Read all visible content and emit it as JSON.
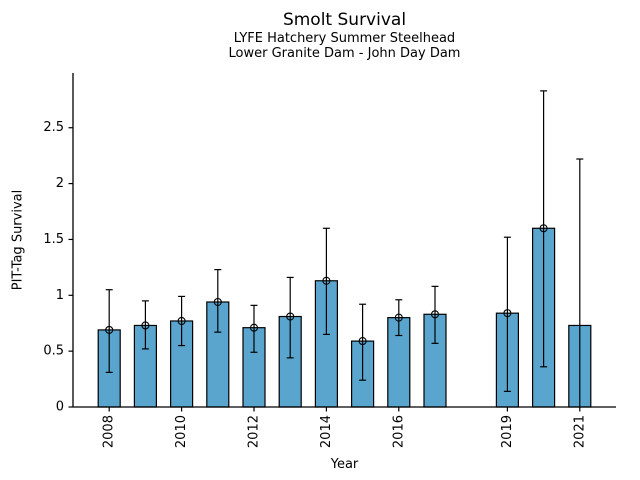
{
  "figure": {
    "title": "Smolt Survival",
    "subtitle1": "LYFE Hatchery Summer Steelhead",
    "subtitle2": "Lower Granite Dam - John Day Dam"
  },
  "chart_data": {
    "type": "bar",
    "title": "Smolt Survival",
    "subtitle": [
      "LYFE Hatchery Summer Steelhead",
      "Lower Granite Dam - John Day Dam"
    ],
    "xlabel": "Year",
    "ylabel": "PIT-Tag Survival",
    "xlim": [
      2007,
      2022
    ],
    "ylim": [
      0,
      2.99
    ],
    "x_ticks": [
      2008,
      2010,
      2012,
      2014,
      2016,
      2019,
      2021
    ],
    "y_ticks": [
      0,
      0.5,
      1,
      1.5,
      2,
      2.5
    ],
    "y_tick_labels": [
      "0",
      "0.5",
      "1",
      "1.5",
      "2",
      "2.5"
    ],
    "grid": false,
    "legend": null,
    "bar_color": "#5AA5CE",
    "bar_edge_color": "#000000",
    "errorbar_color": "#000000",
    "series": [
      {
        "year": 2008,
        "survival": 0.69,
        "ci_low": 0.31,
        "ci_high": 1.05,
        "marker": true,
        "cap_low": true
      },
      {
        "year": 2009,
        "survival": 0.73,
        "ci_low": 0.52,
        "ci_high": 0.95,
        "marker": true,
        "cap_low": true
      },
      {
        "year": 2010,
        "survival": 0.77,
        "ci_low": 0.55,
        "ci_high": 0.99,
        "marker": true,
        "cap_low": true
      },
      {
        "year": 2011,
        "survival": 0.94,
        "ci_low": 0.67,
        "ci_high": 1.23,
        "marker": true,
        "cap_low": true
      },
      {
        "year": 2012,
        "survival": 0.71,
        "ci_low": 0.49,
        "ci_high": 0.91,
        "marker": true,
        "cap_low": true
      },
      {
        "year": 2013,
        "survival": 0.81,
        "ci_low": 0.44,
        "ci_high": 1.16,
        "marker": true,
        "cap_low": true
      },
      {
        "year": 2014,
        "survival": 1.13,
        "ci_low": 0.65,
        "ci_high": 1.6,
        "marker": true,
        "cap_low": true
      },
      {
        "year": 2015,
        "survival": 0.59,
        "ci_low": 0.24,
        "ci_high": 0.92,
        "marker": true,
        "cap_low": true
      },
      {
        "year": 2016,
        "survival": 0.8,
        "ci_low": 0.64,
        "ci_high": 0.96,
        "marker": true,
        "cap_low": true
      },
      {
        "year": 2017,
        "survival": 0.83,
        "ci_low": 0.57,
        "ci_high": 1.08,
        "marker": true,
        "cap_low": true
      },
      {
        "year": 2019,
        "survival": 0.84,
        "ci_low": 0.14,
        "ci_high": 1.52,
        "marker": true,
        "cap_low": true
      },
      {
        "year": 2020,
        "survival": 1.6,
        "ci_low": 0.36,
        "ci_high": 2.83,
        "marker": true,
        "cap_low": true
      },
      {
        "year": 2021,
        "survival": 0.73,
        "ci_low": 0.0,
        "ci_high": 2.22,
        "marker": false,
        "cap_low": false
      }
    ]
  }
}
